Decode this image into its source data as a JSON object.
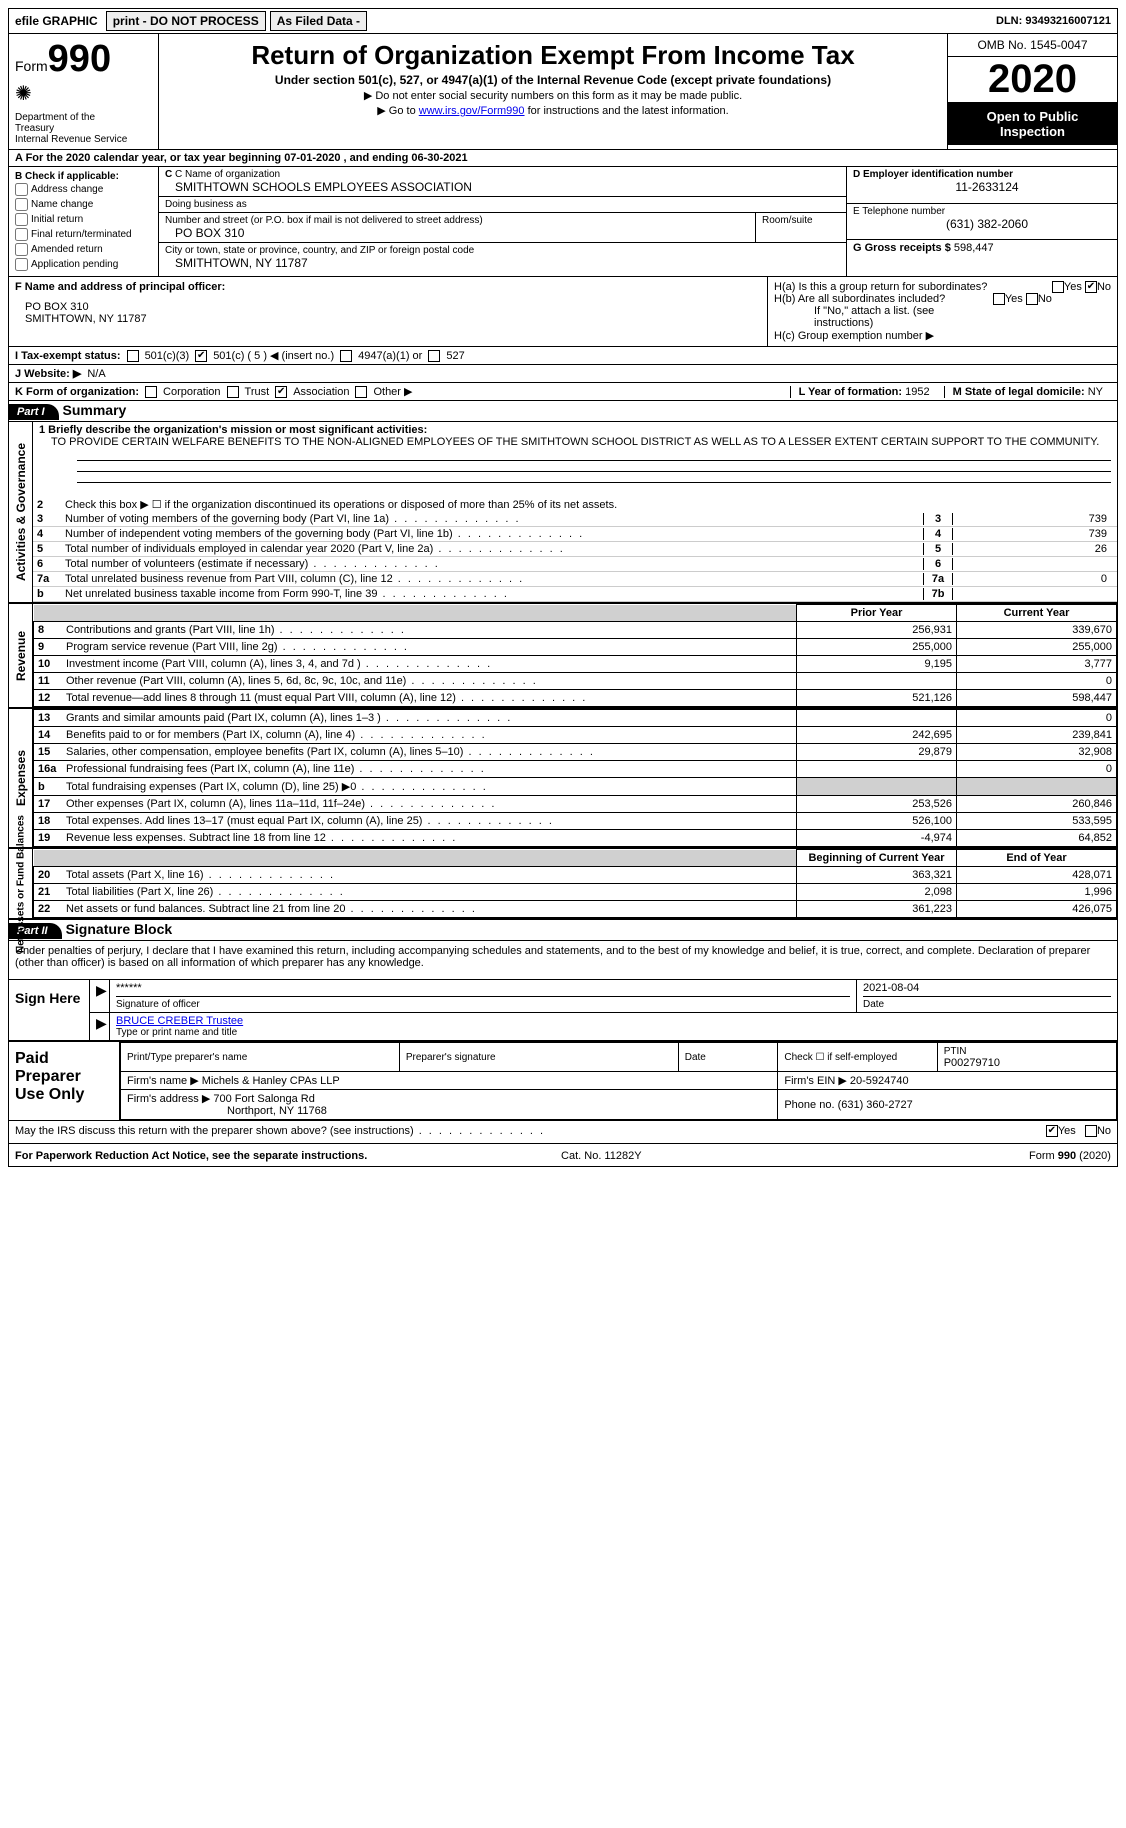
{
  "topbar": {
    "efile": "efile GRAPHIC",
    "print": "print - DO NOT PROCESS",
    "asfiled": "As Filed Data -",
    "dln_label": "DLN:",
    "dln": "93493216007121"
  },
  "header": {
    "form_word": "Form",
    "form_num": "990",
    "dept1": "Department of the",
    "dept2": "Treasury",
    "dept3": "Internal Revenue Service",
    "title": "Return of Organization Exempt From Income Tax",
    "sub": "Under section 501(c), 527, or 4947(a)(1) of the Internal Revenue Code (except private foundations)",
    "note1": "Do not enter social security numbers on this form as it may be made public.",
    "note2a": "Go to ",
    "note2_link": "www.irs.gov/Form990",
    "note2b": " for instructions and the latest information.",
    "omb": "OMB No. 1545-0047",
    "year": "2020",
    "open1": "Open to Public",
    "open2": "Inspection"
  },
  "rowA": "A   For the 2020 calendar year, or tax year beginning 07-01-2020    , and ending 06-30-2021",
  "sectionB": {
    "hdr": "B Check if applicable:",
    "items": [
      "Address change",
      "Name change",
      "Initial return",
      "Final return/terminated",
      "Amended return",
      "Application pending"
    ]
  },
  "sectionC": {
    "name_lbl": "C Name of organization",
    "name": "SMITHTOWN SCHOOLS EMPLOYEES ASSOCIATION",
    "dba_lbl": "Doing business as",
    "dba": "",
    "addr_lbl": "Number and street (or P.O. box if mail is not delivered to street address)",
    "room_lbl": "Room/suite",
    "addr": "PO BOX 310",
    "city_lbl": "City or town, state or province, country, and ZIP or foreign postal code",
    "city": "SMITHTOWN, NY  11787"
  },
  "sectionD": {
    "lbl": "D Employer identification number",
    "val": "11-2633124"
  },
  "sectionE": {
    "lbl": "E Telephone number",
    "val": "(631) 382-2060"
  },
  "sectionG": {
    "lbl": "G Gross receipts $",
    "val": "598,447"
  },
  "sectionF": {
    "lbl": "F  Name and address of principal officer:",
    "l1": "PO BOX 310",
    "l2": "SMITHTOWN, NY  11787"
  },
  "sectionH": {
    "a": "H(a)  Is this a group return for subordinates?",
    "b": "H(b)  Are all subordinates included?",
    "b_note": "If \"No,\" attach a list. (see instructions)",
    "c": "H(c)  Group exemption number ▶",
    "yes": "Yes",
    "no": "No"
  },
  "rowI": {
    "lbl": "I   Tax-exempt status:",
    "o1": "501(c)(3)",
    "o2": "501(c) ( 5 ) ◀ (insert no.)",
    "o3": "4947(a)(1) or",
    "o4": "527"
  },
  "rowJ": {
    "lbl": "J   Website: ▶",
    "val": "N/A"
  },
  "rowK": {
    "lbl": "K Form of organization:",
    "o1": "Corporation",
    "o2": "Trust",
    "o3": "Association",
    "o4": "Other ▶"
  },
  "rowL": {
    "lbl": "L Year of formation:",
    "val": "1952"
  },
  "rowM": {
    "lbl": "M State of legal domicile:",
    "val": "NY"
  },
  "part1": {
    "hdr": "Part I",
    "title": "Summary",
    "l1_lbl": "1 Briefly describe the organization's mission or most significant activities:",
    "l1_val": "TO PROVIDE CERTAIN WELFARE BENEFITS TO THE NON-ALIGNED EMPLOYEES OF THE SMITHTOWN SCHOOL DISTRICT AS WELL AS TO A LESSER EXTENT CERTAIN SUPPORT TO THE COMMUNITY.",
    "l2": "Check this box ▶ ☐  if the organization discontinued its operations or disposed of more than 25% of its net assets.",
    "gov_lines": [
      {
        "n": "3",
        "desc": "Number of voting members of the governing body (Part VI, line 1a)",
        "box": "3",
        "val": "739"
      },
      {
        "n": "4",
        "desc": "Number of independent voting members of the governing body (Part VI, line 1b)",
        "box": "4",
        "val": "739"
      },
      {
        "n": "5",
        "desc": "Total number of individuals employed in calendar year 2020 (Part V, line 2a)",
        "box": "5",
        "val": "26"
      },
      {
        "n": "6",
        "desc": "Total number of volunteers (estimate if necessary)",
        "box": "6",
        "val": ""
      },
      {
        "n": "7a",
        "desc": "Total unrelated business revenue from Part VIII, column (C), line 12",
        "box": "7a",
        "val": "0"
      },
      {
        "n": "b",
        "desc": "Net unrelated business taxable income from Form 990-T, line 39",
        "box": "7b",
        "val": ""
      }
    ],
    "col_prior": "Prior Year",
    "col_curr": "Current Year",
    "col_boy": "Beginning of Current Year",
    "col_eoy": "End of Year",
    "rev_lines": [
      {
        "n": "8",
        "desc": "Contributions and grants (Part VIII, line 1h)",
        "p": "256,931",
        "c": "339,670"
      },
      {
        "n": "9",
        "desc": "Program service revenue (Part VIII, line 2g)",
        "p": "255,000",
        "c": "255,000"
      },
      {
        "n": "10",
        "desc": "Investment income (Part VIII, column (A), lines 3, 4, and 7d )",
        "p": "9,195",
        "c": "3,777"
      },
      {
        "n": "11",
        "desc": "Other revenue (Part VIII, column (A), lines 5, 6d, 8c, 9c, 10c, and 11e)",
        "p": "",
        "c": "0"
      },
      {
        "n": "12",
        "desc": "Total revenue—add lines 8 through 11 (must equal Part VIII, column (A), line 12)",
        "p": "521,126",
        "c": "598,447"
      }
    ],
    "exp_lines": [
      {
        "n": "13",
        "desc": "Grants and similar amounts paid (Part IX, column (A), lines 1–3 )",
        "p": "",
        "c": "0"
      },
      {
        "n": "14",
        "desc": "Benefits paid to or for members (Part IX, column (A), line 4)",
        "p": "242,695",
        "c": "239,841"
      },
      {
        "n": "15",
        "desc": "Salaries, other compensation, employee benefits (Part IX, column (A), lines 5–10)",
        "p": "29,879",
        "c": "32,908"
      },
      {
        "n": "16a",
        "desc": "Professional fundraising fees (Part IX, column (A), line 11e)",
        "p": "",
        "c": "0"
      },
      {
        "n": "b",
        "desc": "Total fundraising expenses (Part IX, column (D), line 25) ▶0",
        "p": "shaded",
        "c": "shaded"
      },
      {
        "n": "17",
        "desc": "Other expenses (Part IX, column (A), lines 11a–11d, 11f–24e)",
        "p": "253,526",
        "c": "260,846"
      },
      {
        "n": "18",
        "desc": "Total expenses. Add lines 13–17 (must equal Part IX, column (A), line 25)",
        "p": "526,100",
        "c": "533,595"
      },
      {
        "n": "19",
        "desc": "Revenue less expenses. Subtract line 18 from line 12",
        "p": "-4,974",
        "c": "64,852"
      }
    ],
    "na_lines": [
      {
        "n": "20",
        "desc": "Total assets (Part X, line 16)",
        "p": "363,321",
        "c": "428,071"
      },
      {
        "n": "21",
        "desc": "Total liabilities (Part X, line 26)",
        "p": "2,098",
        "c": "1,996"
      },
      {
        "n": "22",
        "desc": "Net assets or fund balances. Subtract line 21 from line 20",
        "p": "361,223",
        "c": "426,075"
      }
    ],
    "vlabels": {
      "gov": "Activities & Governance",
      "rev": "Revenue",
      "exp": "Expenses",
      "na": "Net Assets or\nFund Balances"
    }
  },
  "part2": {
    "hdr": "Part II",
    "title": "Signature Block",
    "perjury": "Under penalties of perjury, I declare that I have examined this return, including accompanying schedules and statements, and to the best of my knowledge and belief, it is true, correct, and complete. Declaration of preparer (other than officer) is based on all information of which preparer has any knowledge.",
    "sign_here": "Sign Here",
    "sig_stars": "******",
    "sig_officer_lbl": "Signature of officer",
    "sig_date": "2021-08-04",
    "sig_date_lbl": "Date",
    "sig_name": "BRUCE CREBER Trustee",
    "sig_name_lbl": "Type or print name and title",
    "paid": "Paid Preparer Use Only",
    "p_name_lbl": "Print/Type preparer's name",
    "p_sig_lbl": "Preparer's signature",
    "p_date_lbl": "Date",
    "p_check": "Check ☐ if self-employed",
    "ptin_lbl": "PTIN",
    "ptin": "P00279710",
    "firm_name_lbl": "Firm's name      ▶",
    "firm_name": "Michels & Hanley CPAs LLP",
    "firm_ein_lbl": "Firm's EIN ▶",
    "firm_ein": "20-5924740",
    "firm_addr_lbl": "Firm's address ▶",
    "firm_addr1": "700 Fort Salonga Rd",
    "firm_addr2": "Northport, NY  11768",
    "phone_lbl": "Phone no.",
    "phone": "(631) 360-2727",
    "discuss": "May the IRS discuss this return with the preparer shown above? (see instructions)",
    "yes": "Yes",
    "no": "No"
  },
  "footer": {
    "left": "For Paperwork Reduction Act Notice, see the separate instructions.",
    "mid": "Cat. No. 11282Y",
    "right": "Form 990 (2020)"
  }
}
